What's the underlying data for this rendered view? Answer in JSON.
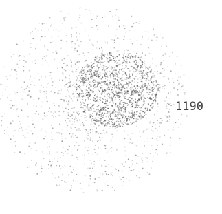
{
  "label": "1190"
}
